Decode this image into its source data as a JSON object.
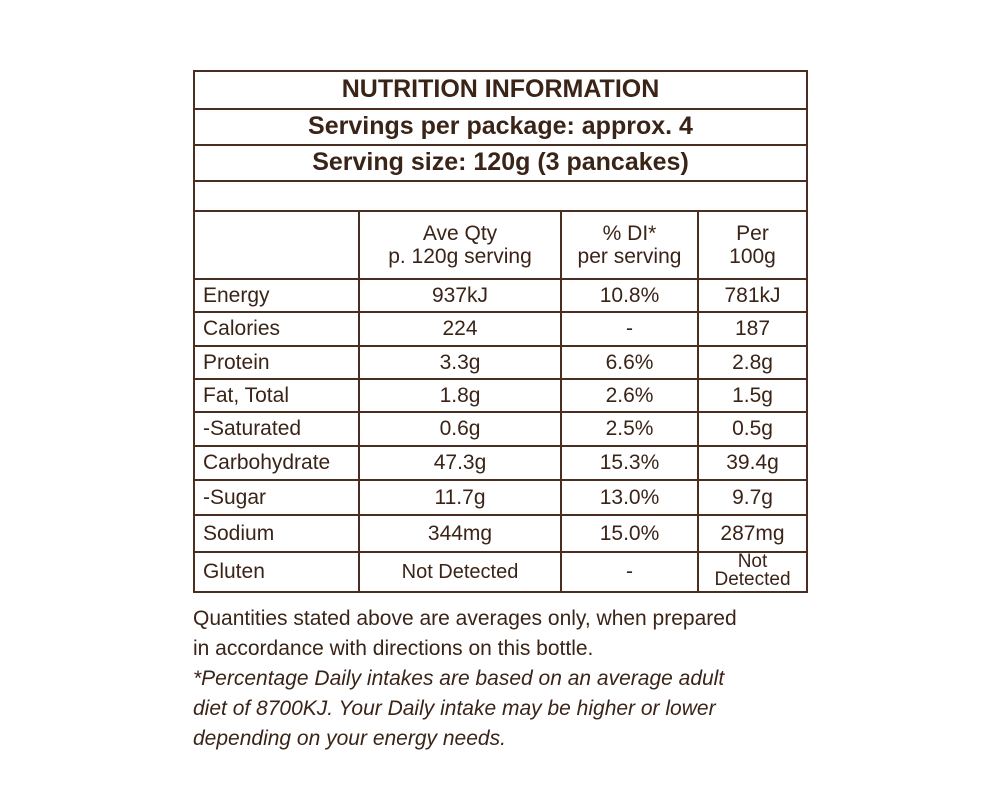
{
  "header": {
    "title": "NUTRITION INFORMATION",
    "servings": "Servings per package: approx. 4",
    "serving_size": "Serving size: 120g (3 pancakes)"
  },
  "table": {
    "columns": [
      [
        "Ave Qty",
        "p. 120g serving"
      ],
      [
        "% DI*",
        "per serving"
      ],
      [
        "Per",
        "100g"
      ]
    ],
    "rows": [
      [
        "Energy",
        "937kJ",
        "10.8%",
        "781kJ"
      ],
      [
        "Calories",
        "224",
        "-",
        "187"
      ],
      [
        "Protein",
        "3.3g",
        "6.6%",
        "2.8g"
      ],
      [
        "Fat, Total",
        "1.8g",
        "2.6%",
        "1.5g"
      ],
      [
        "-Saturated",
        "0.6g",
        "2.5%",
        "0.5g"
      ],
      [
        "Carbohydrate",
        "47.3g",
        "15.3%",
        "39.4g"
      ],
      [
        "-Sugar",
        "11.7g",
        "13.0%",
        "9.7g"
      ],
      [
        "Sodium",
        "344mg",
        "15.0%",
        "287mg"
      ],
      [
        "Gluten",
        "Not Detected",
        "-",
        "Not Detected"
      ]
    ]
  },
  "footer": {
    "note": [
      "Quantities stated above are averages only, when prepared",
      "in accordance with directions on this bottle."
    ],
    "disclaimer": [
      "*Percentage Daily intakes are based on an average adult",
      "diet of 8700KJ. Your Daily intake may be higher or lower",
      "depending on your energy needs."
    ]
  }
}
